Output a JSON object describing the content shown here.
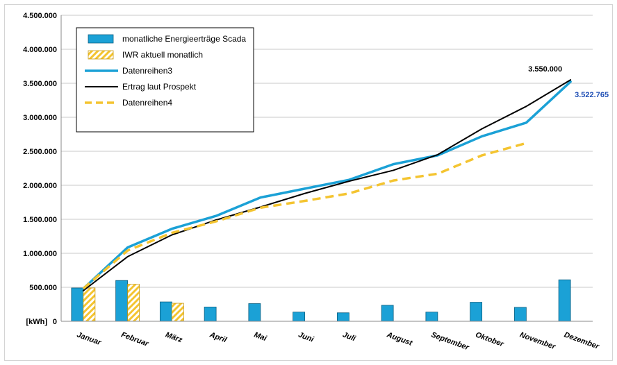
{
  "chart_data": {
    "type": "bar",
    "categories": [
      "Januar",
      "Februar",
      "März",
      "April",
      "Mai",
      "Juni",
      "Juli",
      "August",
      "September",
      "Oktober",
      "November",
      "Dezember"
    ],
    "ylim": [
      0,
      4500000
    ],
    "yticks": [
      0,
      500000,
      1000000,
      1500000,
      2000000,
      2500000,
      3000000,
      3500000,
      4000000,
      4500000
    ],
    "ytick_labels": [
      "0",
      "500.000",
      "1.000.000",
      "1.500.000",
      "2.000.000",
      "2.500.000",
      "3.000.000",
      "3.500.000",
      "4.000.000",
      "4.500.000"
    ],
    "ylabel": "[kWh]",
    "grid": true,
    "legend_position": "top-left",
    "bar_series": [
      {
        "name": "monatliche Energieerträge Scada",
        "color": "#1ba1d6",
        "values": [
          490000,
          600000,
          285000,
          210000,
          260000,
          135000,
          125000,
          235000,
          135000,
          280000,
          205000,
          610000
        ]
      },
      {
        "name": "IWR aktuell monatlich",
        "color": "#f4c430",
        "pattern": "hatched",
        "values": [
          490000,
          545000,
          265000,
          null,
          null,
          null,
          null,
          null,
          null,
          null,
          null,
          null
        ]
      }
    ],
    "line_series": [
      {
        "name": "Datenreihen3",
        "color": "#1ba1d6",
        "style": "solid",
        "values": [
          480000,
          1085000,
          1360000,
          1550000,
          1820000,
          1950000,
          2080000,
          2310000,
          2440000,
          2720000,
          2920000,
          3522765
        ]
      },
      {
        "name": "Ertrag laut Prospekt",
        "color": "#000000",
        "style": "solid",
        "values": [
          450000,
          950000,
          1270000,
          1490000,
          1680000,
          1880000,
          2060000,
          2220000,
          2450000,
          2830000,
          3160000,
          3550000
        ]
      },
      {
        "name": "Datenreihen4",
        "color": "#f4c430",
        "style": "dashed",
        "values": [
          480000,
          1040000,
          1300000,
          1470000,
          1670000,
          1770000,
          1880000,
          2070000,
          2170000,
          2440000,
          2620000,
          null
        ]
      }
    ],
    "annotations": [
      {
        "text": "3.550.000",
        "series": "Ertrag laut Prospekt",
        "color": "#000000"
      },
      {
        "text": "3.522.765",
        "series": "Datenreihen3",
        "color": "#1f4fb5"
      }
    ]
  }
}
